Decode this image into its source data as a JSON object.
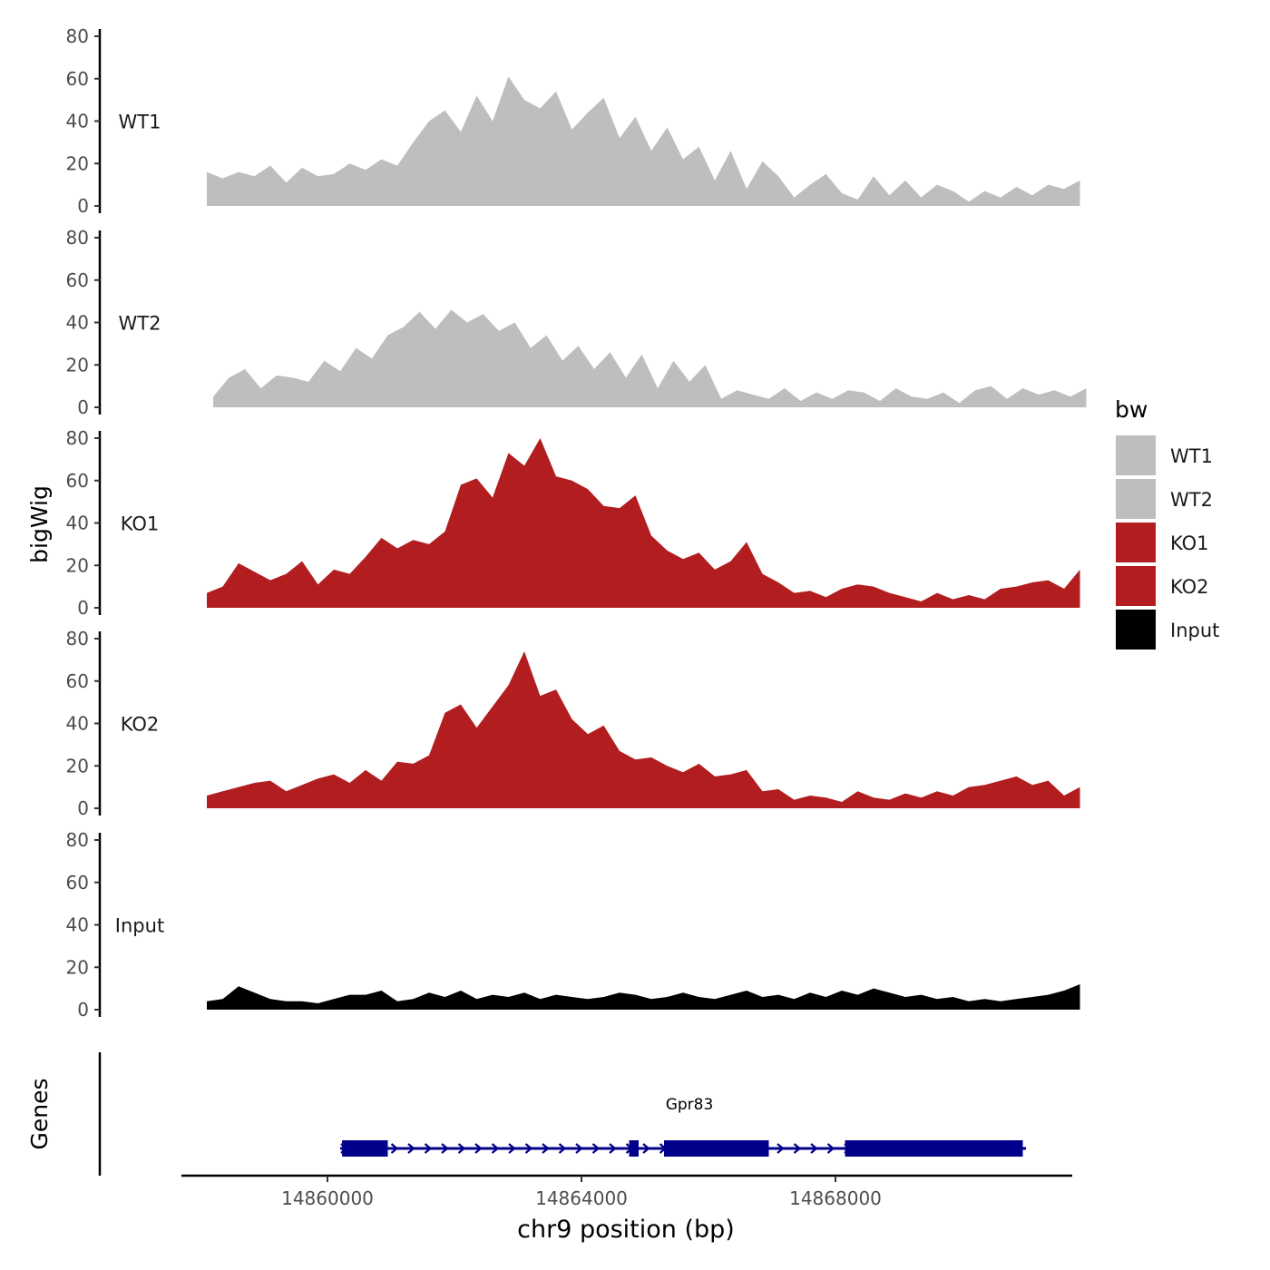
{
  "chart_data": {
    "type": "area",
    "ylabel": "bigWig",
    "xlabel": "chr9 position (bp)",
    "genes_axis_title": "Genes",
    "ylim": [
      0,
      80
    ],
    "y_ticks": [
      0,
      20,
      40,
      60,
      80
    ],
    "x_ticks": [
      14860000,
      14864000,
      14868000
    ],
    "xlim": [
      14857700,
      14871700
    ],
    "legend": {
      "title": "bw",
      "position": "right",
      "entries": [
        {
          "label": "WT1",
          "color": "#bebebe"
        },
        {
          "label": "WT2",
          "color": "#bebebe"
        },
        {
          "label": "KO1",
          "color": "#b21d1f"
        },
        {
          "label": "KO2",
          "color": "#b21d1f"
        },
        {
          "label": "Input",
          "color": "#000000"
        }
      ]
    },
    "series": [
      {
        "name": "WT1",
        "color": "#bebebe",
        "start": 14858100,
        "step": 250,
        "values": [
          16,
          13,
          16,
          14,
          19,
          11,
          18,
          14,
          15,
          20,
          17,
          22,
          19,
          30,
          40,
          45,
          35,
          52,
          40,
          61,
          50,
          46,
          54,
          36,
          44,
          51,
          32,
          42,
          26,
          37,
          22,
          28,
          12,
          26,
          8,
          21,
          14,
          4,
          10,
          15,
          6,
          3,
          14,
          5,
          12,
          4,
          10,
          7,
          2,
          7,
          4,
          9,
          5,
          10,
          8,
          12
        ]
      },
      {
        "name": "WT2",
        "color": "#bebebe",
        "start": 14858200,
        "step": 250,
        "values": [
          5,
          14,
          18,
          9,
          15,
          14,
          12,
          22,
          17,
          28,
          23,
          34,
          38,
          45,
          37,
          46,
          40,
          44,
          36,
          40,
          28,
          34,
          22,
          29,
          18,
          26,
          14,
          25,
          9,
          22,
          12,
          20,
          4,
          8,
          6,
          4,
          9,
          3,
          7,
          4,
          8,
          7,
          3,
          9,
          5,
          4,
          7,
          2,
          8,
          10,
          4,
          9,
          6,
          8,
          5,
          9
        ]
      },
      {
        "name": "KO1",
        "color": "#b21d1f",
        "start": 14858100,
        "step": 250,
        "values": [
          7,
          10,
          21,
          17,
          13,
          16,
          22,
          11,
          18,
          16,
          24,
          33,
          28,
          32,
          30,
          36,
          58,
          61,
          52,
          73,
          67,
          80,
          62,
          60,
          56,
          48,
          47,
          53,
          34,
          27,
          23,
          26,
          18,
          22,
          31,
          16,
          12,
          7,
          8,
          5,
          9,
          11,
          10,
          7,
          5,
          3,
          7,
          4,
          6,
          4,
          9,
          10,
          12,
          13,
          9,
          18
        ]
      },
      {
        "name": "KO2",
        "color": "#b21d1f",
        "start": 14858100,
        "step": 250,
        "values": [
          6,
          8,
          10,
          12,
          13,
          8,
          11,
          14,
          16,
          12,
          18,
          13,
          22,
          21,
          25,
          45,
          49,
          38,
          48,
          58,
          74,
          53,
          56,
          42,
          35,
          39,
          27,
          23,
          24,
          20,
          17,
          21,
          15,
          16,
          18,
          8,
          9,
          4,
          6,
          5,
          3,
          8,
          5,
          4,
          7,
          5,
          8,
          6,
          10,
          11,
          13,
          15,
          11,
          13,
          6,
          10
        ]
      },
      {
        "name": "Input",
        "color": "#000000",
        "start": 14858100,
        "step": 250,
        "values": [
          4,
          5,
          11,
          8,
          5,
          4,
          4,
          3,
          5,
          7,
          7,
          9,
          4,
          5,
          8,
          6,
          9,
          5,
          7,
          6,
          8,
          5,
          7,
          6,
          5,
          6,
          8,
          7,
          5,
          6,
          8,
          6,
          5,
          7,
          9,
          6,
          7,
          5,
          8,
          6,
          9,
          7,
          10,
          8,
          6,
          7,
          5,
          6,
          4,
          5,
          4,
          5,
          6,
          7,
          9,
          12
        ]
      }
    ],
    "genes": [
      {
        "name": "Gpr83",
        "color": "#00008b",
        "strand": "+",
        "start": 14860200,
        "end": 14871000,
        "exons": [
          [
            14860230,
            14860950
          ],
          [
            14864750,
            14864900
          ],
          [
            14865300,
            14866950
          ],
          [
            14868150,
            14870950
          ]
        ]
      }
    ]
  }
}
